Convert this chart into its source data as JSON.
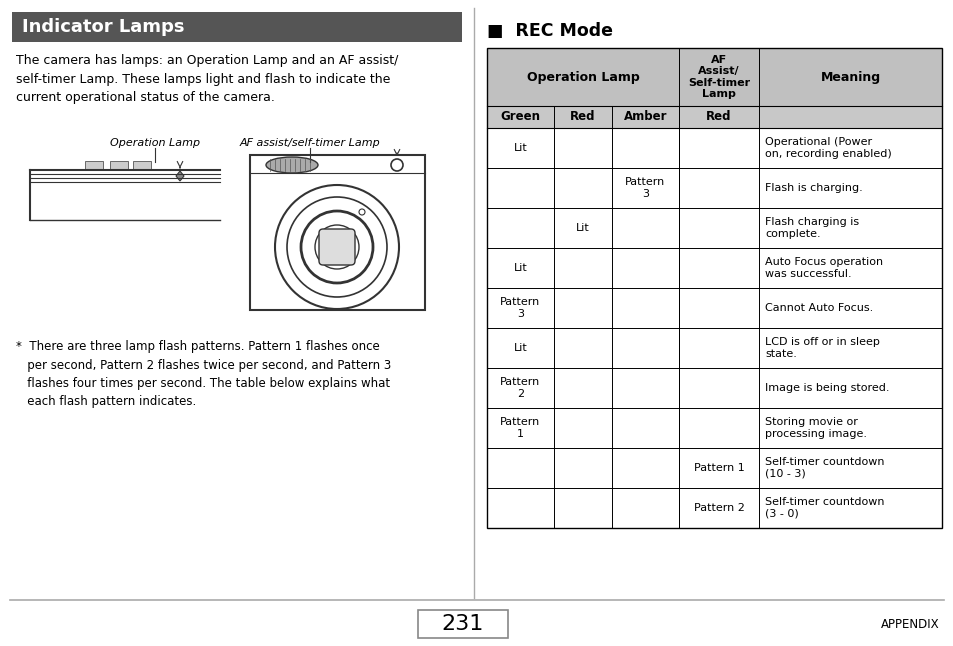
{
  "title_left": "Indicator Lamps",
  "title_left_bg": "#555555",
  "title_left_color": "#ffffff",
  "section_right": "REC Mode",
  "body_text": "The camera has lamps: an Operation Lamp and an AF assist/\nself-timer Lamp. These lamps light and flash to indicate the\ncurrent operational status of the camera.",
  "footnote": "*  There are three lamp flash patterns. Pattern 1 flashes once\n   per second, Pattern 2 flashes twice per second, and Pattern 3\n   flashes four times per second. The table below explains what\n   each flash pattern indicates.",
  "page_number": "231",
  "page_label": "APPENDIX",
  "table_header_bg": "#c0c0c0",
  "table_subheader_bg": "#c8c8c8",
  "col_subheaders": [
    "Green",
    "Red",
    "Amber",
    "Red"
  ],
  "rows": [
    [
      "Lit",
      "",
      "",
      "",
      "Operational (Power\non, recording enabled)"
    ],
    [
      "",
      "",
      "Pattern\n3",
      "",
      "Flash is charging."
    ],
    [
      "",
      "Lit",
      "",
      "",
      "Flash charging is\ncomplete."
    ],
    [
      "Lit",
      "",
      "",
      "",
      "Auto Focus operation\nwas successful."
    ],
    [
      "Pattern\n3",
      "",
      "",
      "",
      "Cannot Auto Focus."
    ],
    [
      "Lit",
      "",
      "",
      "",
      "LCD is off or in sleep\nstate."
    ],
    [
      "Pattern\n2",
      "",
      "",
      "",
      "Image is being stored."
    ],
    [
      "Pattern\n1",
      "",
      "",
      "",
      "Storing movie or\nprocessing image."
    ],
    [
      "",
      "",
      "",
      "Pattern 1",
      "Self-timer countdown\n(10 - 3)"
    ],
    [
      "",
      "",
      "",
      "Pattern 2",
      "Self-timer countdown\n(3 - 0)"
    ]
  ],
  "op_lamp_label": "Operation Lamp",
  "af_lamp_label": "AF assist/self-timer Lamp",
  "divider_color": "#aaaaaa",
  "background_color": "#ffffff"
}
